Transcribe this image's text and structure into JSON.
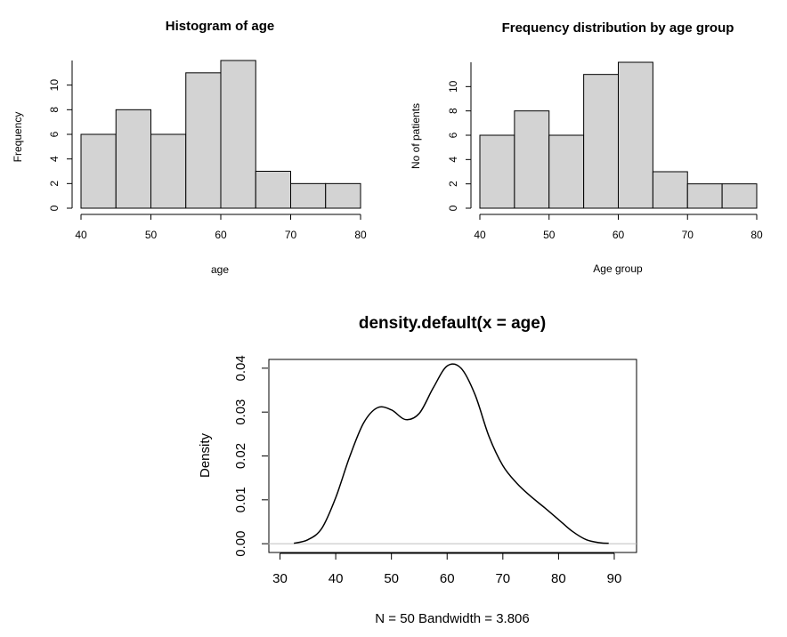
{
  "chart_data": [
    {
      "type": "bar",
      "title": "Histogram of age",
      "xlabel": "age",
      "ylabel": "Frequency",
      "bins": [
        [
          40,
          45
        ],
        [
          45,
          50
        ],
        [
          50,
          55
        ],
        [
          55,
          60
        ],
        [
          60,
          65
        ],
        [
          65,
          70
        ],
        [
          70,
          75
        ],
        [
          75,
          80
        ]
      ],
      "values": [
        6,
        8,
        6,
        11,
        12,
        3,
        2,
        2
      ],
      "xticks": [
        40,
        50,
        60,
        70,
        80
      ],
      "yticks": [
        0,
        2,
        4,
        6,
        8,
        10
      ],
      "xlim": [
        40,
        80
      ],
      "ylim": [
        0,
        12
      ],
      "bar_color": "#d3d3d3"
    },
    {
      "type": "bar",
      "title": "Frequency distribution by age group",
      "xlabel": "Age group",
      "ylabel": "No of patients",
      "bins": [
        [
          40,
          45
        ],
        [
          45,
          50
        ],
        [
          50,
          55
        ],
        [
          55,
          60
        ],
        [
          60,
          65
        ],
        [
          65,
          70
        ],
        [
          70,
          75
        ],
        [
          75,
          80
        ]
      ],
      "values": [
        6,
        8,
        6,
        11,
        12,
        3,
        2,
        2
      ],
      "xticks": [
        40,
        50,
        60,
        70,
        80
      ],
      "yticks": [
        0,
        2,
        4,
        6,
        8,
        10
      ],
      "xlim": [
        40,
        80
      ],
      "ylim": [
        0,
        12
      ],
      "bar_color": "#d3d3d3"
    },
    {
      "type": "line",
      "title": "density.default(x = age)",
      "xlabel": "N = 50   Bandwidth = 3.806",
      "ylabel": "Density",
      "x": [
        32.5,
        35,
        37.5,
        40,
        42.5,
        45,
        47.5,
        50,
        52.5,
        55,
        57.5,
        60,
        62.5,
        65,
        67.5,
        70,
        72.5,
        75,
        77.5,
        80,
        82.5,
        85,
        87.5,
        89
      ],
      "y": [
        0.0001,
        0.0009,
        0.0035,
        0.0105,
        0.0198,
        0.0275,
        0.031,
        0.0305,
        0.0283,
        0.0297,
        0.0355,
        0.0405,
        0.04,
        0.034,
        0.0245,
        0.0178,
        0.0138,
        0.0108,
        0.0082,
        0.0055,
        0.0028,
        0.0009,
        0.0002,
        0.0001
      ],
      "xticks": [
        30,
        40,
        50,
        60,
        70,
        80,
        90
      ],
      "yticks": [
        0.0,
        0.01,
        0.02,
        0.03,
        0.04
      ],
      "ytick_labels": [
        "0.00",
        "0.01",
        "0.02",
        "0.03",
        "0.04"
      ],
      "xlim": [
        28,
        94
      ],
      "ylim": [
        -0.002,
        0.042
      ],
      "baseline_color": "#bfbfbf"
    }
  ]
}
